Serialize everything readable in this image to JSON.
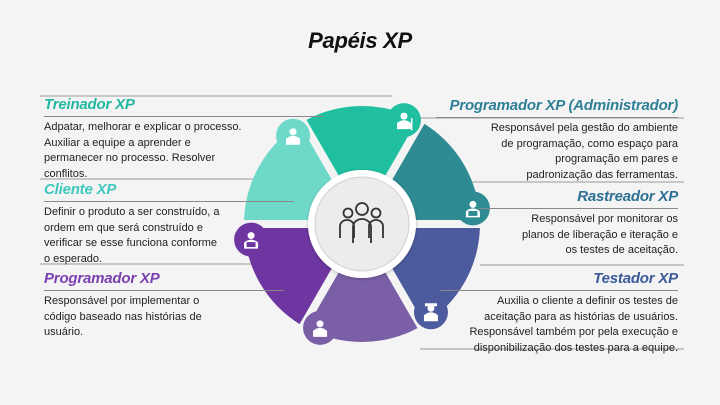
{
  "title": "Papéis XP",
  "colors": {
    "background": "#f4f4f4",
    "treinador": "#1fbf9f",
    "programador_admin": "#2e8a93",
    "rastreador": "#2f7c8e",
    "testador": "#4b5b9e",
    "bottom_segment": "#7a5fa6",
    "programador": "#6f36a1",
    "cliente": "#6fd9c9",
    "treinador_head": "#1fb8a0",
    "programador_admin_head": "#2e7f96",
    "rastreador_head": "#2e6f94",
    "testador_head": "#3b5a9a",
    "cliente_head": "#3fc7bd",
    "programador_head": "#7a3fb0"
  },
  "center_icon": "group-of-people-icon",
  "roles": {
    "treinador": {
      "title": "Treinador XP",
      "icon": "hiker-icon",
      "lines": [
        "Adpatar, melhorar e explicar o processo.",
        "Auxiliar a equipe a aprender e",
        "permanecer no processo. Resolver",
        "conflitos."
      ]
    },
    "cliente": {
      "title": "Cliente XP",
      "icon": "person-with-tie-icon",
      "lines": [
        "Definir o produto a ser construído, a",
        "ordem em que será construído e",
        "verificar se esse funciona conforme",
        "o esperado."
      ]
    },
    "programador": {
      "title": "Programador XP",
      "icon": "developer-icon",
      "lines": [
        "Responsável por implementar o",
        "código baseado nas histórias de",
        "usuário."
      ]
    },
    "programador_admin": {
      "title": "Programador XP (Administrador)",
      "icon": "developer-icon",
      "lines": [
        "Responsável pela gestão do ambiente",
        "de programação, como espaço para",
        "programação em pares e",
        "padronização das ferramentas."
      ]
    },
    "rastreador": {
      "title": "Rastreador XP",
      "icon": "none",
      "lines": [
        "Responsável por monitorar os",
        "planos de liberação e iteração e",
        "os testes de aceitação."
      ]
    },
    "testador": {
      "title": "Testador XP",
      "icon": "detective-icon",
      "lines": [
        "Auxilia o cliente a definir os testes de",
        "aceitação para as histórias de usuários.",
        "Responsável também por pela execução e",
        "disponibilização dos testes para a equipe."
      ]
    },
    "bottom_segment_icon": "person-icon"
  }
}
